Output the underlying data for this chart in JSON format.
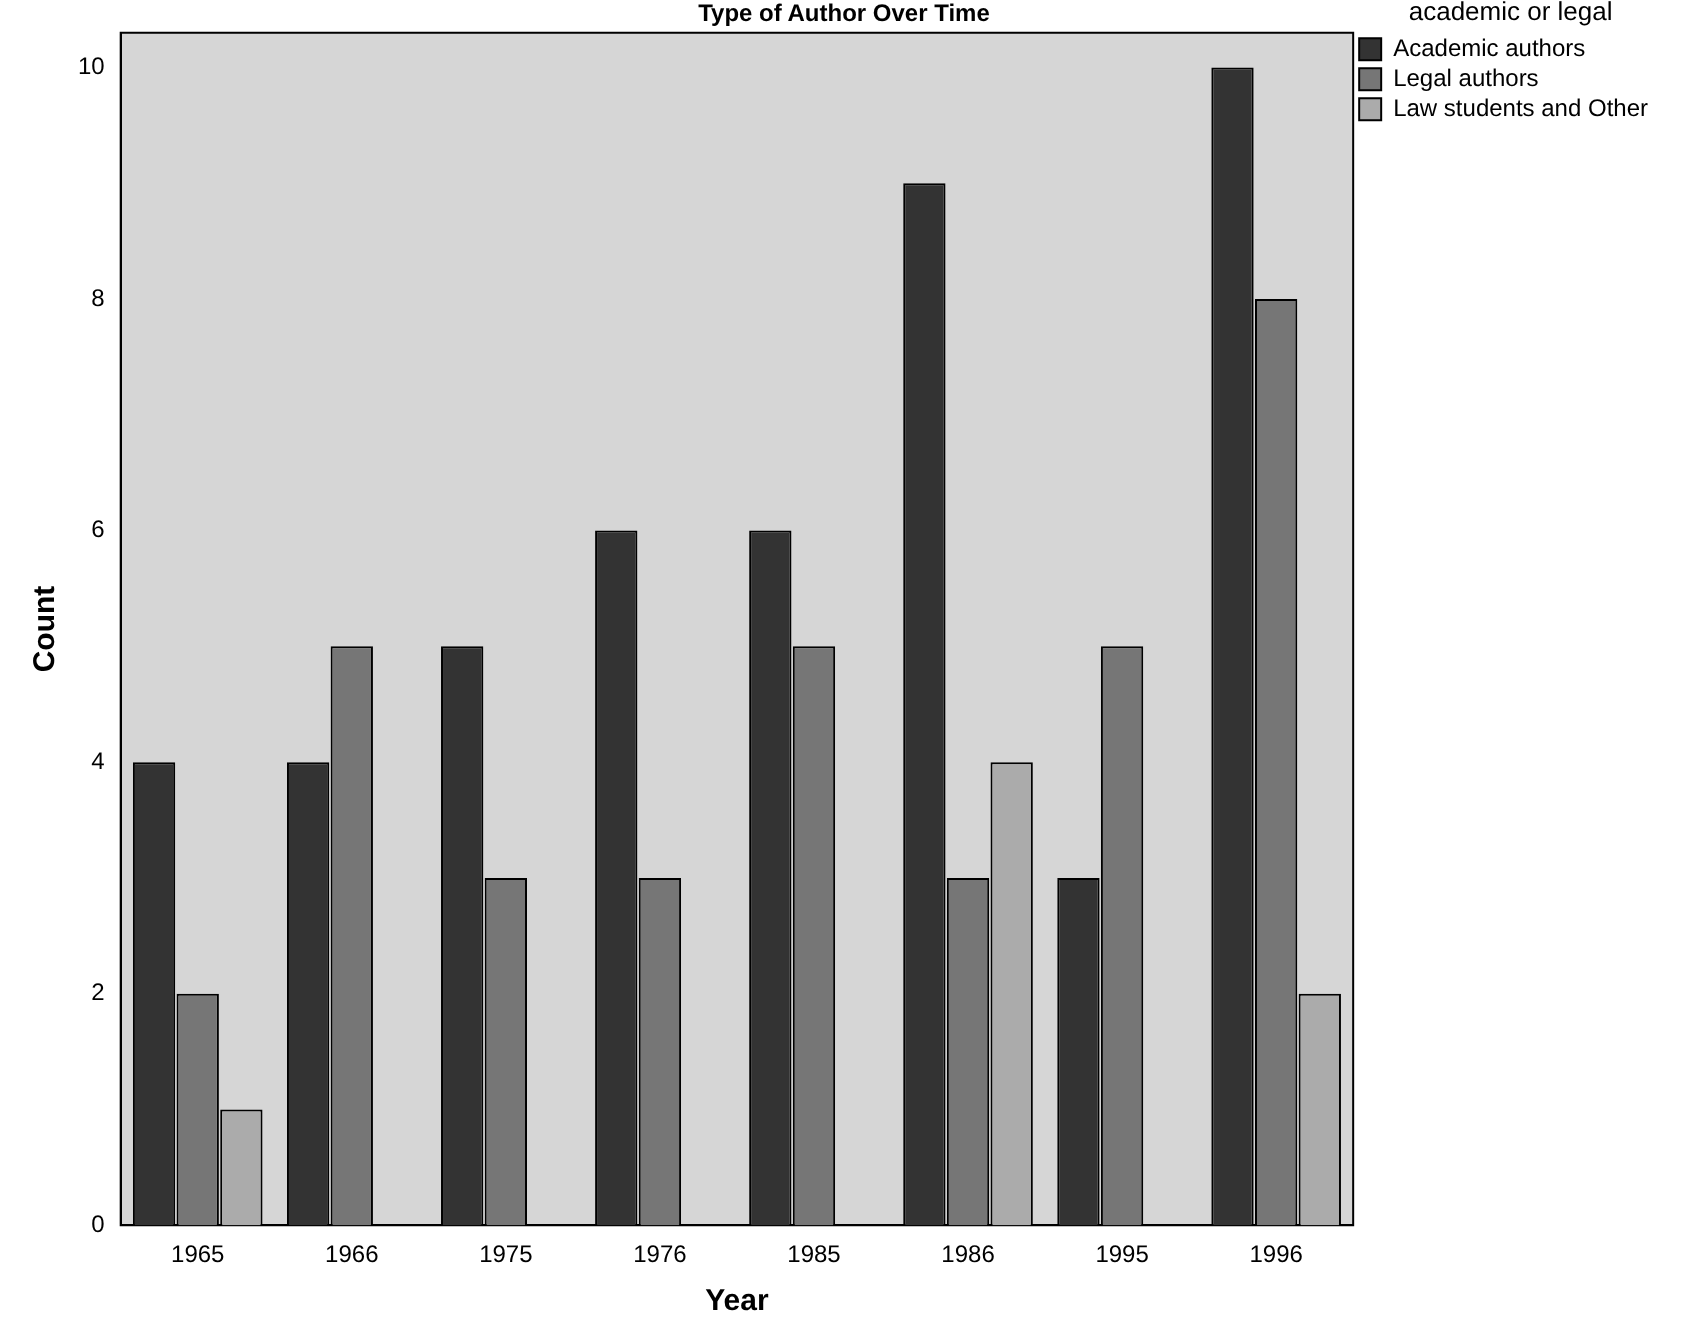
{
  "chart_data": {
    "type": "bar",
    "title": "Type of Author Over Time",
    "xlabel": "Year",
    "ylabel": "Count",
    "legend_title": "academic or legal",
    "categories": [
      "1965",
      "1966",
      "1975",
      "1976",
      "1985",
      "1986",
      "1995",
      "1996"
    ],
    "series": [
      {
        "name": "Academic authors",
        "color": "#333333",
        "values": [
          4,
          4,
          5,
          6,
          6,
          9,
          3,
          10
        ]
      },
      {
        "name": "Legal authors",
        "color": "#767676",
        "values": [
          2,
          5,
          3,
          3,
          5,
          3,
          5,
          8
        ]
      },
      {
        "name": "Law students and Other",
        "color": "#ababab",
        "values": [
          1,
          null,
          null,
          null,
          null,
          4,
          null,
          2
        ]
      }
    ],
    "ylim": [
      0,
      10.3
    ],
    "yticks": [
      0,
      2,
      4,
      6,
      8,
      10
    ],
    "grid": false,
    "legend": "top right"
  }
}
